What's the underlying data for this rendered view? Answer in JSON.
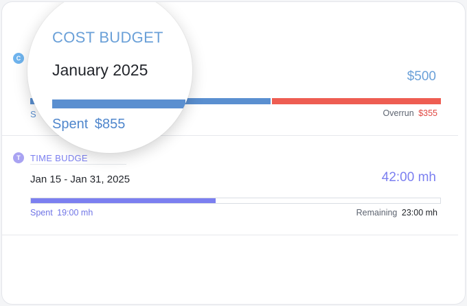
{
  "cost_budget": {
    "title": "COST BUDGET",
    "period": "January 2025",
    "budget_amount": "$500",
    "spent_label": "Spent",
    "spent_value": "$855",
    "overrun_label": "Overrun",
    "overrun_value": "$355",
    "badge_letter": "C",
    "budget_fraction": 0.585,
    "colors": {
      "accent": "#6aa0d8",
      "spent_bar": "#5a8fd0",
      "overrun_bar": "#ee5d52",
      "overrun_text": "#e0453f"
    }
  },
  "time_budget": {
    "title": "TIME BUDGE",
    "period": "Jan 15 - Jan 31, 2025",
    "budget_amount": "42:00 mh",
    "spent_label": "Spent",
    "spent_value": "19:00 mh",
    "remaining_label": "Remaining",
    "remaining_value": "23:00 mh",
    "badge_letter": "T",
    "spent_fraction": 0.452,
    "colors": {
      "accent": "#7b7ff0",
      "badge": "#a9a3f2"
    }
  }
}
